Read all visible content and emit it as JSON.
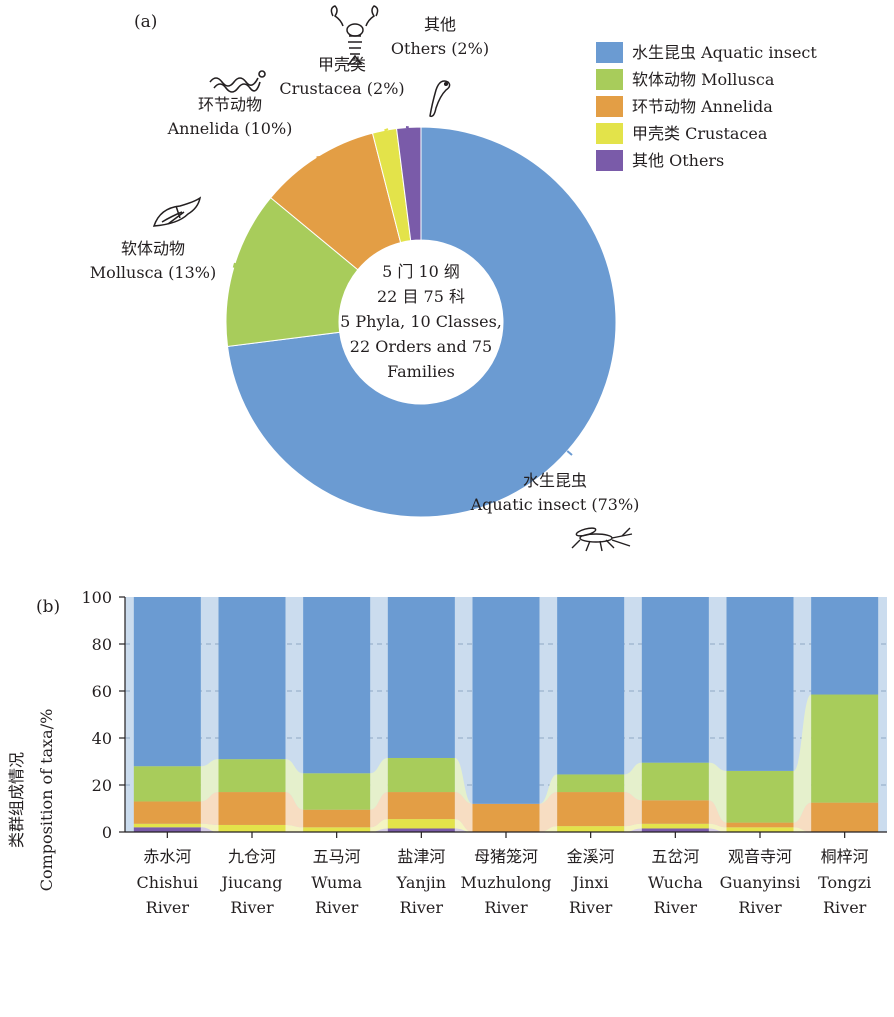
{
  "chart_data": [
    {
      "panel_label": "(a)",
      "type": "pie",
      "center_text": [
        "5 门 10 纲",
        "22 目 75 科",
        "5 Phyla, 10 Classes,",
        "22 Orders and 75",
        "Families"
      ],
      "slices": [
        {
          "label_zh": "水生昆虫",
          "label_en": "Aquatic insect",
          "value": 73,
          "callout_zh": "水生昆虫",
          "callout_en": "Aquatic insect (73%)",
          "color": "#6b9bd2",
          "icon": "mosquito-icon"
        },
        {
          "label_zh": "软体动物",
          "label_en": "Mollusca",
          "value": 13,
          "callout_zh": "软体动物",
          "callout_en": "Mollusca (13%)",
          "color": "#a8cc5b",
          "icon": "shell-icon"
        },
        {
          "label_zh": "环节动物",
          "label_en": "Annelida",
          "value": 10,
          "callout_zh": "环节动物",
          "callout_en": "Annelida (10%)",
          "color": "#e39e45",
          "icon": "worm-icon"
        },
        {
          "label_zh": "甲壳类",
          "label_en": "Crustacea",
          "value": 2,
          "callout_zh": "甲壳类",
          "callout_en": "Crustacea (2%)",
          "color": "#e3e34a",
          "icon": "crayfish-icon"
        },
        {
          "label_zh": "其他",
          "label_en": "Others",
          "value": 2,
          "callout_zh": "其他",
          "callout_en": "Others (2%)",
          "color": "#7a5ba9",
          "icon": "leech-icon"
        }
      ],
      "legend": [
        "水生昆虫 Aquatic insect",
        "软体动物 Mollusca",
        "环节动物 Annelida",
        "甲壳类 Crustacea",
        "其他 Others"
      ],
      "legend_position": "top-right"
    },
    {
      "panel_label": "(b)",
      "type": "bar",
      "stacked": true,
      "ylabel_zh": "类群组成情况",
      "ylabel_en": "Composition of taxa/%",
      "ylim": [
        0,
        100
      ],
      "yticks": [
        "0",
        "20",
        "40",
        "60",
        "80",
        "100"
      ],
      "grid": "horizontal dashed",
      "categories": [
        {
          "zh": "赤水河",
          "en1": "Chishui",
          "en2": "River"
        },
        {
          "zh": "九仓河",
          "en1": "Jiucang",
          "en2": "River"
        },
        {
          "zh": "五马河",
          "en1": "Wuma",
          "en2": "River"
        },
        {
          "zh": "盐津河",
          "en1": "Yanjin",
          "en2": "River"
        },
        {
          "zh": "母猪笼河",
          "en1": "Muzhulong",
          "en2": "River"
        },
        {
          "zh": "金溪河",
          "en1": "Jinxi",
          "en2": "River"
        },
        {
          "zh": "五岔河",
          "en1": "Wucha",
          "en2": "River"
        },
        {
          "zh": "观音寺河",
          "en1": "Guanyinsi",
          "en2": "River"
        },
        {
          "zh": "桐梓河",
          "en1": "Tongzi",
          "en2": "River"
        }
      ],
      "series": [
        {
          "name": "其他 Others",
          "color": "#7a5ba9",
          "values": [
            2,
            0,
            0,
            1.5,
            0,
            0,
            1.5,
            0,
            0
          ]
        },
        {
          "name": "甲壳类 Crustacea",
          "color": "#e3e34a",
          "values": [
            1.5,
            3,
            2,
            4,
            0,
            2.5,
            2,
            2,
            0
          ]
        },
        {
          "name": "环节动物 Annelida",
          "color": "#e39e45",
          "values": [
            9.5,
            14,
            7.5,
            11.5,
            12,
            14.5,
            10,
            2,
            12.5
          ]
        },
        {
          "name": "软体动物 Mollusca",
          "color": "#a8cc5b",
          "values": [
            15,
            14,
            15.5,
            14.5,
            0,
            7.5,
            16,
            22,
            46
          ]
        },
        {
          "name": "水生昆虫 Aquatic insect",
          "color": "#6b9bd2",
          "values": [
            72,
            69,
            75,
            68.5,
            88,
            75.5,
            70.5,
            74,
            41.5
          ]
        }
      ]
    }
  ]
}
